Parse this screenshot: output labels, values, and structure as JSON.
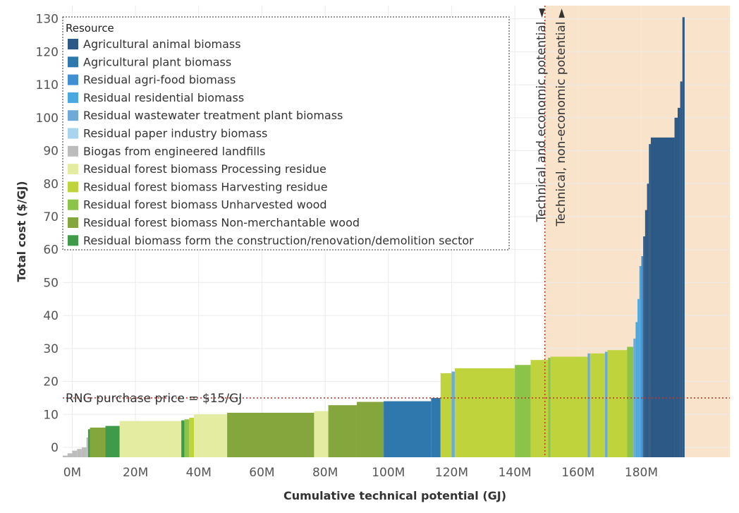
{
  "chart_data": {
    "type": "bar",
    "subtype": "supply-cost-curve (variable-width bars)",
    "xlabel": "Cumulative technical potential (GJ)",
    "ylabel": "Total cost ($/GJ)",
    "xlim": [
      -3,
      208
    ],
    "ylim": [
      -3,
      134
    ],
    "x_unit": "M GJ",
    "x_ticks": [
      0,
      20,
      40,
      60,
      80,
      100,
      120,
      140,
      160,
      180
    ],
    "x_tick_labels": [
      "0M",
      "20M",
      "40M",
      "60M",
      "80M",
      "100M",
      "120M",
      "140M",
      "160M",
      "180M"
    ],
    "y_ticks": [
      0,
      10,
      20,
      30,
      40,
      50,
      60,
      70,
      80,
      90,
      100,
      110,
      120,
      130
    ],
    "y_tick_labels": [
      "0",
      "10",
      "20",
      "30",
      "40",
      "50",
      "60",
      "70",
      "80",
      "90",
      "100",
      "110",
      "120",
      "130"
    ],
    "grid": true,
    "legend": {
      "title": "Resource",
      "placement": "top-left",
      "entries": [
        {
          "name": "Agricultural animal biomass",
          "color": "#2c5985"
        },
        {
          "name": "Agricultural plant biomass",
          "color": "#2f78ad"
        },
        {
          "name": "Residual agri-food biomass",
          "color": "#3f8fd2"
        },
        {
          "name": "Residual residential biomass",
          "color": "#4aa8e0"
        },
        {
          "name": "Residual wastewater treatment plant biomass",
          "color": "#6ea9d8"
        },
        {
          "name": "Residual paper industry biomass",
          "color": "#a8d4ee"
        },
        {
          "name": "Biogas from engineered landfills",
          "color": "#bcbcbc"
        },
        {
          "name": "Residual forest biomass Processing residue",
          "color": "#e3eca0"
        },
        {
          "name": "Residual forest biomass Harvesting residue",
          "color": "#bfd43c"
        },
        {
          "name": "Residual forest biomass Unharvested wood",
          "color": "#8cc44a"
        },
        {
          "name": "Residual forest biomass Non-merchantable wood",
          "color": "#84a63c"
        },
        {
          "name": "Residual biomass form the construction/renovation/demolition sector",
          "color": "#3f9a4a"
        }
      ]
    },
    "segments": [
      {
        "x0": -3,
        "x1": -1.5,
        "y": -2.5,
        "series": "Biogas from engineered landfills"
      },
      {
        "x0": -1.5,
        "x1": 0,
        "y": -1.8,
        "series": "Biogas from engineered landfills"
      },
      {
        "x0": 0,
        "x1": 1.5,
        "y": -1,
        "series": "Biogas from engineered landfills"
      },
      {
        "x0": 1.5,
        "x1": 3,
        "y": -0.5,
        "series": "Biogas from engineered landfills"
      },
      {
        "x0": 3,
        "x1": 4.5,
        "y": 0,
        "series": "Biogas from engineered landfills"
      },
      {
        "x0": 4.5,
        "x1": 5,
        "y": 3,
        "series": "Biogas from engineered landfills"
      },
      {
        "x0": 5,
        "x1": 5.6,
        "y": 5.5,
        "series": "Residual biomass form the construction/renovation/demolition sector"
      },
      {
        "x0": 5.6,
        "x1": 10.5,
        "y": 6,
        "series": "Residual forest biomass Non-merchantable wood"
      },
      {
        "x0": 10.5,
        "x1": 15,
        "y": 6.5,
        "series": "Residual biomass form the construction/renovation/demolition sector"
      },
      {
        "x0": 15,
        "x1": 34.5,
        "y": 8,
        "series": "Residual forest biomass Processing residue"
      },
      {
        "x0": 34.5,
        "x1": 35.5,
        "y": 8.2,
        "series": "Residual biomass form the construction/renovation/demolition sector"
      },
      {
        "x0": 35.5,
        "x1": 37,
        "y": 8.5,
        "series": "Residual forest biomass Unharvested wood"
      },
      {
        "x0": 37,
        "x1": 38.5,
        "y": 9,
        "series": "Residual forest biomass Harvesting residue"
      },
      {
        "x0": 38.5,
        "x1": 49,
        "y": 10,
        "series": "Residual forest biomass Processing residue"
      },
      {
        "x0": 49,
        "x1": 76.5,
        "y": 10.5,
        "series": "Residual forest biomass Non-merchantable wood"
      },
      {
        "x0": 76.5,
        "x1": 81,
        "y": 11,
        "series": "Residual forest biomass Processing residue"
      },
      {
        "x0": 81,
        "x1": 90,
        "y": 12.8,
        "series": "Residual forest biomass Non-merchantable wood"
      },
      {
        "x0": 90,
        "x1": 98.5,
        "y": 13.8,
        "series": "Residual forest biomass Non-merchantable wood"
      },
      {
        "x0": 98.5,
        "x1": 113.5,
        "y": 14,
        "series": "Agricultural plant biomass"
      },
      {
        "x0": 113.5,
        "x1": 116.5,
        "y": 15,
        "series": "Agricultural plant biomass"
      },
      {
        "x0": 116.5,
        "x1": 120,
        "y": 22.5,
        "series": "Residual forest biomass Harvesting residue"
      },
      {
        "x0": 120,
        "x1": 121,
        "y": 23,
        "series": "Residual wastewater treatment plant biomass"
      },
      {
        "x0": 121,
        "x1": 140,
        "y": 24,
        "series": "Residual forest biomass Harvesting residue"
      },
      {
        "x0": 140,
        "x1": 145,
        "y": 25,
        "series": "Residual forest biomass Unharvested wood"
      },
      {
        "x0": 145,
        "x1": 150.5,
        "y": 26.5,
        "series": "Residual forest biomass Harvesting residue"
      },
      {
        "x0": 150.5,
        "x1": 151.3,
        "y": 27.2,
        "series": "Residual forest biomass Unharvested wood"
      },
      {
        "x0": 151.3,
        "x1": 163,
        "y": 27.5,
        "series": "Residual forest biomass Harvesting residue"
      },
      {
        "x0": 163,
        "x1": 163.8,
        "y": 28.5,
        "series": "Residual wastewater treatment plant biomass"
      },
      {
        "x0": 163.8,
        "x1": 168.5,
        "y": 28.5,
        "series": "Residual forest biomass Harvesting residue"
      },
      {
        "x0": 168.5,
        "x1": 169.3,
        "y": 29,
        "series": "Residual wastewater treatment plant biomass"
      },
      {
        "x0": 169.3,
        "x1": 175.5,
        "y": 29.5,
        "series": "Residual forest biomass Harvesting residue"
      },
      {
        "x0": 175.5,
        "x1": 177.5,
        "y": 30.5,
        "series": "Residual forest biomass Unharvested wood"
      },
      {
        "x0": 177.5,
        "x1": 178.2,
        "y": 33,
        "series": "Residual wastewater treatment plant biomass"
      },
      {
        "x0": 178.2,
        "x1": 178.8,
        "y": 38,
        "series": "Residual residential biomass"
      },
      {
        "x0": 178.8,
        "x1": 179.4,
        "y": 45,
        "series": "Residual residential biomass"
      },
      {
        "x0": 179.4,
        "x1": 180,
        "y": 55,
        "series": "Residual residential biomass"
      },
      {
        "x0": 180,
        "x1": 180.6,
        "y": 58,
        "series": "Residual agri-food biomass"
      },
      {
        "x0": 180.6,
        "x1": 181.2,
        "y": 64,
        "series": "Agricultural animal biomass"
      },
      {
        "x0": 181.2,
        "x1": 181.8,
        "y": 72,
        "series": "Agricultural animal biomass"
      },
      {
        "x0": 181.8,
        "x1": 182.4,
        "y": 80,
        "series": "Agricultural animal biomass"
      },
      {
        "x0": 182.4,
        "x1": 183,
        "y": 92,
        "series": "Agricultural animal biomass"
      },
      {
        "x0": 183,
        "x1": 190.5,
        "y": 94,
        "series": "Agricultural animal biomass"
      },
      {
        "x0": 190.5,
        "x1": 191.5,
        "y": 100,
        "series": "Agricultural animal biomass"
      },
      {
        "x0": 191.5,
        "x1": 192.3,
        "y": 103,
        "series": "Agricultural animal biomass"
      },
      {
        "x0": 192.3,
        "x1": 193,
        "y": 111,
        "series": "Agricultural animal biomass"
      },
      {
        "x0": 193,
        "x1": 193.7,
        "y": 130.5,
        "series": "Agricultural animal biomass"
      }
    ],
    "reference_lines": [
      {
        "orientation": "horizontal",
        "value": 15,
        "label": "RNG purchase price = $15/GJ"
      },
      {
        "orientation": "vertical",
        "value": 149.5
      }
    ],
    "shaded_region": {
      "x_from": 149.5,
      "x_to": 208,
      "color": "#f9e4cb"
    },
    "annotations": {
      "economic": "Technical and economic potential ◄",
      "non_economic": "Technical, non-economic potential ►"
    }
  }
}
